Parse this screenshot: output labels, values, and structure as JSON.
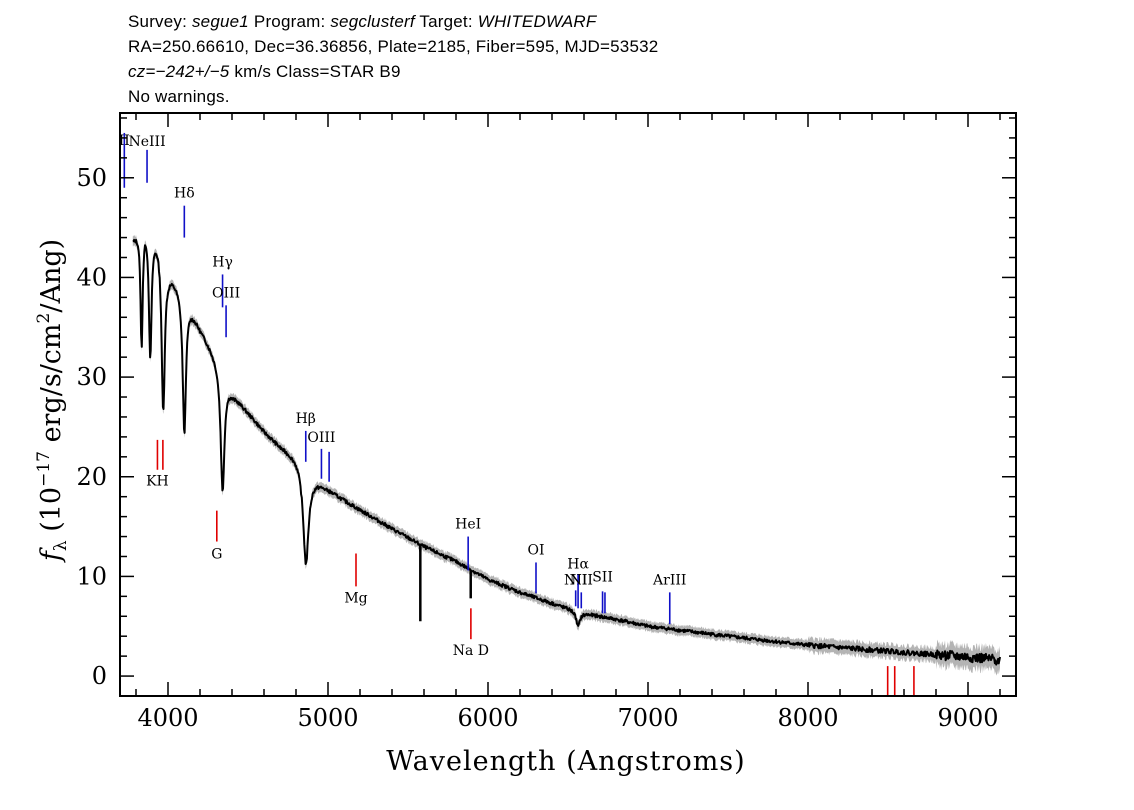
{
  "header": {
    "line1": {
      "survey_label": "Survey:",
      "survey": "segue1",
      "program_label": "Program:",
      "program": "segclusterf",
      "target_label": "Target:",
      "target": "WHITEDWARF"
    },
    "line2": "RA=250.66610, Dec=36.36856, Plate=2185, Fiber=595, MJD=53532",
    "line3": {
      "cz_label": "cz=",
      "cz": "−242+/−5",
      "cz_rest": " km/s Class=STAR B9"
    },
    "line4": "No warnings."
  },
  "chart_data": {
    "type": "line",
    "xlabel": "Wavelength (Angstroms)",
    "ylabel": "fλ (10⁻¹⁷ erg/s/cm²/Ang)",
    "ylabel_parts": {
      "f": "f",
      "sub": "λ",
      "pre": " (10",
      "exp1": "−17",
      "mid": " erg/s/cm",
      "exp2": "2",
      "post": "/Ang)"
    },
    "xlim": [
      3700,
      9300
    ],
    "ylim": [
      -2,
      56.5
    ],
    "xticks": [
      4000,
      5000,
      6000,
      7000,
      8000,
      9000
    ],
    "xticklabels": [
      "4000",
      "5000",
      "6000",
      "7000",
      "8000",
      "9000"
    ],
    "yticks": [
      0,
      10,
      20,
      30,
      40,
      50
    ],
    "yticklabels": [
      "0",
      "10",
      "20",
      "30",
      "40",
      "50"
    ],
    "colors": {
      "spectrum": "#000000",
      "error": "#b4b4b4",
      "emission": "#1010c8",
      "absorption": "#e00000"
    },
    "continuum": [
      [
        3780,
        44
      ],
      [
        3860,
        46
      ],
      [
        3950,
        44
      ],
      [
        4000,
        41
      ],
      [
        4100,
        38.5
      ],
      [
        4200,
        35
      ],
      [
        4300,
        32
      ],
      [
        4400,
        28.5
      ],
      [
        4500,
        26.5
      ],
      [
        4600,
        24.6
      ],
      [
        4700,
        23.1
      ],
      [
        4800,
        22
      ],
      [
        4900,
        20
      ],
      [
        5000,
        18.8
      ],
      [
        5100,
        17.7
      ],
      [
        5200,
        16.7
      ],
      [
        5400,
        14.8
      ],
      [
        5600,
        13.0
      ],
      [
        5800,
        11.5
      ],
      [
        6000,
        9.7
      ],
      [
        6200,
        8.4
      ],
      [
        6400,
        7.3
      ],
      [
        6600,
        6.3
      ],
      [
        6800,
        5.7
      ],
      [
        7000,
        5.0
      ],
      [
        7500,
        4.0
      ],
      [
        8000,
        3.1
      ],
      [
        8500,
        2.5
      ],
      [
        9000,
        1.9
      ],
      [
        9200,
        1.6
      ]
    ],
    "absorption_lines": [
      {
        "center": 3835,
        "depth": 12,
        "width": 8
      },
      {
        "center": 3889,
        "depth": 13,
        "width": 10
      },
      {
        "center": 3970,
        "depth": 16,
        "width": 12
      },
      {
        "center": 4102,
        "depth": 14,
        "width": 12
      },
      {
        "center": 4341,
        "depth": 12,
        "width": 14
      },
      {
        "center": 4862,
        "depth": 9.5,
        "width": 20
      },
      {
        "center": 6563,
        "depth": 1.5,
        "width": 14
      }
    ],
    "spikes": [
      {
        "x": 5577,
        "y": 12.5
      },
      {
        "x": 5577,
        "y": 5.5
      },
      {
        "x": 5892,
        "y": 7.8
      }
    ],
    "line_markers": [
      {
        "label": "NeIII",
        "x": 3869,
        "y1": 49.5,
        "y2": 52.8,
        "color": "emission",
        "label_y": 53.2
      },
      {
        "label": "II",
        "x": 3727,
        "y1": 49,
        "y2": 54.5,
        "color": "emission",
        "label_y": 53.3
      },
      {
        "label": "Hδ",
        "x": 4102,
        "y1": 44,
        "y2": 47.2,
        "color": "emission",
        "label_y": 48.0
      },
      {
        "label": "Hγ",
        "x": 4341,
        "y1": 37,
        "y2": 40.3,
        "color": "emission",
        "label_y": 41.1
      },
      {
        "label": "OIII",
        "x": 4363,
        "y1": 34,
        "y2": 37.2,
        "color": "emission",
        "label_y": 38.0
      },
      {
        "label": "Hβ",
        "x": 4861,
        "y1": 21.5,
        "y2": 24.6,
        "color": "emission",
        "label_y": 25.4
      },
      {
        "label": "OIII",
        "x": 4959,
        "y1": 19.8,
        "y2": 22.8,
        "color": "emission",
        "label_y": 23.5
      },
      {
        "label": "",
        "x": 5007,
        "y1": 19.5,
        "y2": 22.5,
        "color": "emission"
      },
      {
        "label": "HeI",
        "x": 5876,
        "y1": 10.6,
        "y2": 14.0,
        "color": "emission",
        "label_y": 14.8
      },
      {
        "label": "OI",
        "x": 6300,
        "y1": 8.3,
        "y2": 11.4,
        "color": "emission",
        "label_y": 12.2
      },
      {
        "label": "NII",
        "x": 6548,
        "y1": 7.0,
        "y2": 8.6,
        "color": "emission",
        "label_y": 9.2
      },
      {
        "label": "Hα",
        "x": 6563,
        "y1": 6.8,
        "y2": 10.2,
        "color": "emission",
        "label_y": 10.8
      },
      {
        "label": "NII",
        "x": 6583,
        "y1": 6.8,
        "y2": 8.4,
        "color": "emission",
        "label_y": 9.2
      },
      {
        "label": "SII",
        "x": 6716,
        "y1": 6.3,
        "y2": 8.5,
        "color": "emission",
        "label_y": 9.5
      },
      {
        "label": "",
        "x": 6731,
        "y1": 6.3,
        "y2": 8.4,
        "color": "emission"
      },
      {
        "label": "ArIII",
        "x": 7136,
        "y1": 5.2,
        "y2": 8.4,
        "color": "emission",
        "label_y": 9.2
      },
      {
        "label": "KH",
        "x": 3934,
        "y1": 20.7,
        "y2": 23.7,
        "color": "absorption",
        "label_y": 19.1
      },
      {
        "label": "",
        "x": 3968,
        "y1": 20.7,
        "y2": 23.7,
        "color": "absorption"
      },
      {
        "label": "G",
        "x": 4305,
        "y1": 13.5,
        "y2": 16.6,
        "color": "absorption",
        "label_y": 11.8
      },
      {
        "label": "Mg",
        "x": 5175,
        "y1": 9.0,
        "y2": 12.3,
        "color": "absorption",
        "label_y": 7.4
      },
      {
        "label": "Na D",
        "x": 5893,
        "y1": 3.7,
        "y2": 6.8,
        "color": "absorption",
        "label_y": 2.1
      },
      {
        "label": "",
        "x": 8498,
        "y1": -2,
        "y2": 1.0,
        "color": "absorption"
      },
      {
        "label": "",
        "x": 8542,
        "y1": -2,
        "y2": 1.0,
        "color": "absorption"
      },
      {
        "label": "",
        "x": 8662,
        "y1": -2,
        "y2": 1.0,
        "color": "absorption"
      }
    ]
  }
}
